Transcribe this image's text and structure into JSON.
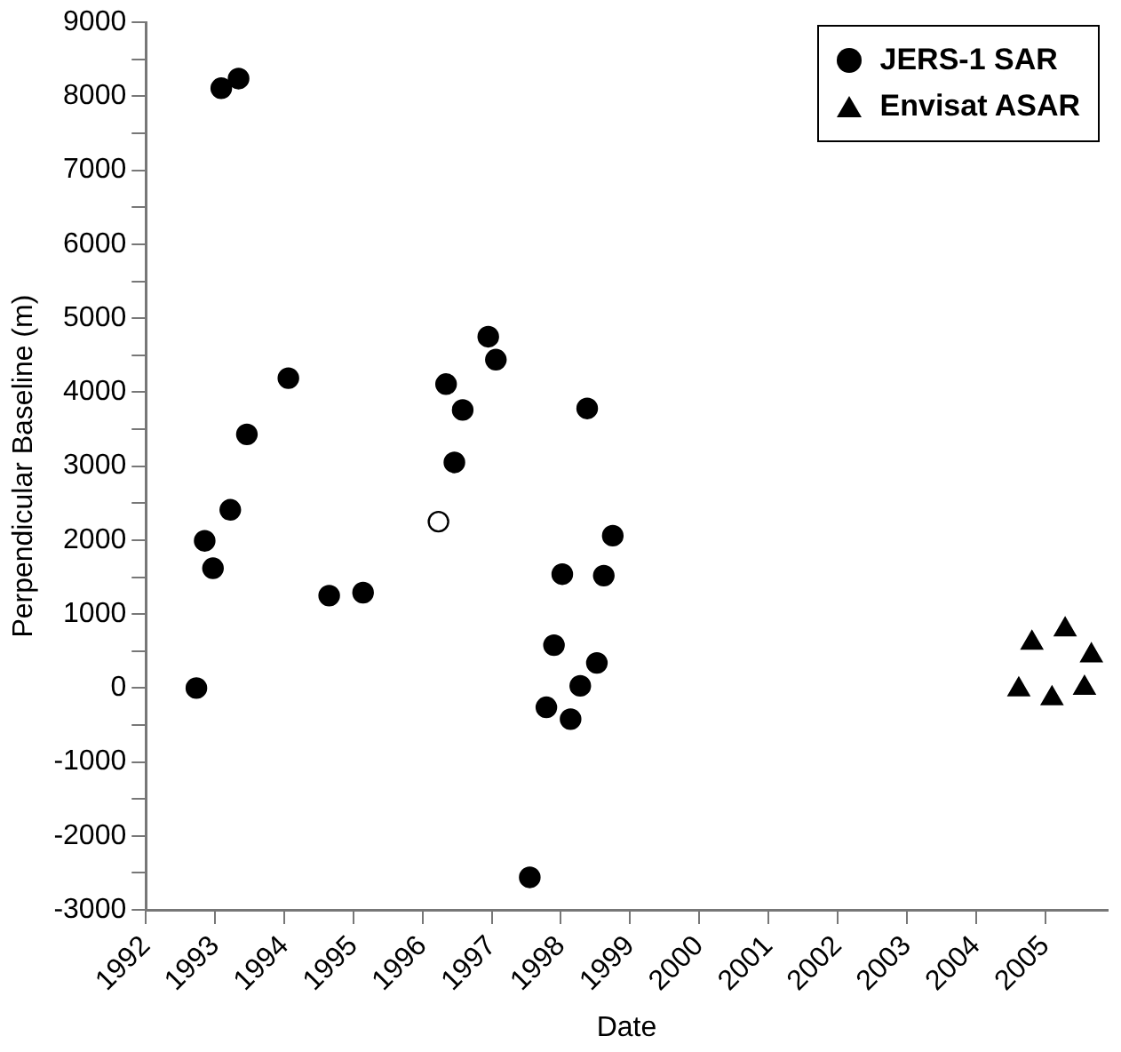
{
  "chart_data": {
    "type": "scatter",
    "xlabel": "Date",
    "ylabel": "Perpendicular Baseline (m)",
    "xlim": [
      1992,
      2005.9
    ],
    "xticks": [
      1992,
      1993,
      1994,
      1995,
      1996,
      1997,
      1998,
      1999,
      2000,
      2001,
      2002,
      2003,
      2004,
      2005
    ],
    "ylim": [
      -3000,
      9000
    ],
    "yticks": [
      -3000,
      {
        "value": -2500,
        "label": null
      },
      -2000,
      {
        "value": -1500,
        "label": null
      },
      -1000,
      {
        "value": -500,
        "label": null
      },
      0,
      {
        "value": 500,
        "label": null
      },
      1000,
      {
        "value": 1500,
        "label": null
      },
      2000,
      {
        "value": 2500,
        "label": null
      },
      3000,
      {
        "value": 3500,
        "label": null
      },
      4000,
      {
        "value": 4500,
        "label": null
      },
      5000,
      {
        "value": 5500,
        "label": null
      },
      6000,
      {
        "value": 6500,
        "label": null
      },
      7000,
      {
        "value": 7500,
        "label": null
      },
      8000,
      {
        "value": 8500,
        "label": null
      },
      9000
    ],
    "grid": false,
    "legend": "top right",
    "series": [
      {
        "name": "JERS-1 SAR",
        "color": "#000000",
        "marker": "circle",
        "x": [
          1993.09,
          1993.34,
          1994.06,
          1993.46,
          1993.22,
          1992.85,
          1996.34,
          1996.58,
          1996.46,
          1996.95,
          1997.06,
          1998.38,
          1992.97,
          1992.73,
          1994.65,
          1995.14,
          1998.75,
          1998.02,
          1998.62,
          1997.9,
          1998.52,
          1998.28,
          1997.79,
          1998.14,
          1997.55
        ],
        "values": [
          8110,
          8240,
          4190,
          3430,
          2410,
          1990,
          4110,
          3760,
          3050,
          4750,
          4440,
          3780,
          1620,
          0,
          1250,
          1290,
          2060,
          1540,
          1520,
          580,
          340,
          30,
          -260,
          -420,
          -2560
        ]
      },
      {
        "color": "#ffffff",
        "marker": "circle",
        "x": [
          1996.23
        ],
        "values": [
          2250
        ]
      },
      {
        "name": "Envisat ASAR",
        "color": "#000000",
        "marker": "triangle",
        "x": [
          2004.62,
          2004.81,
          2005.1,
          2005.29,
          2005.57,
          2005.67
        ],
        "values": [
          -20,
          610,
          -140,
          790,
          0,
          440
        ]
      }
    ]
  }
}
